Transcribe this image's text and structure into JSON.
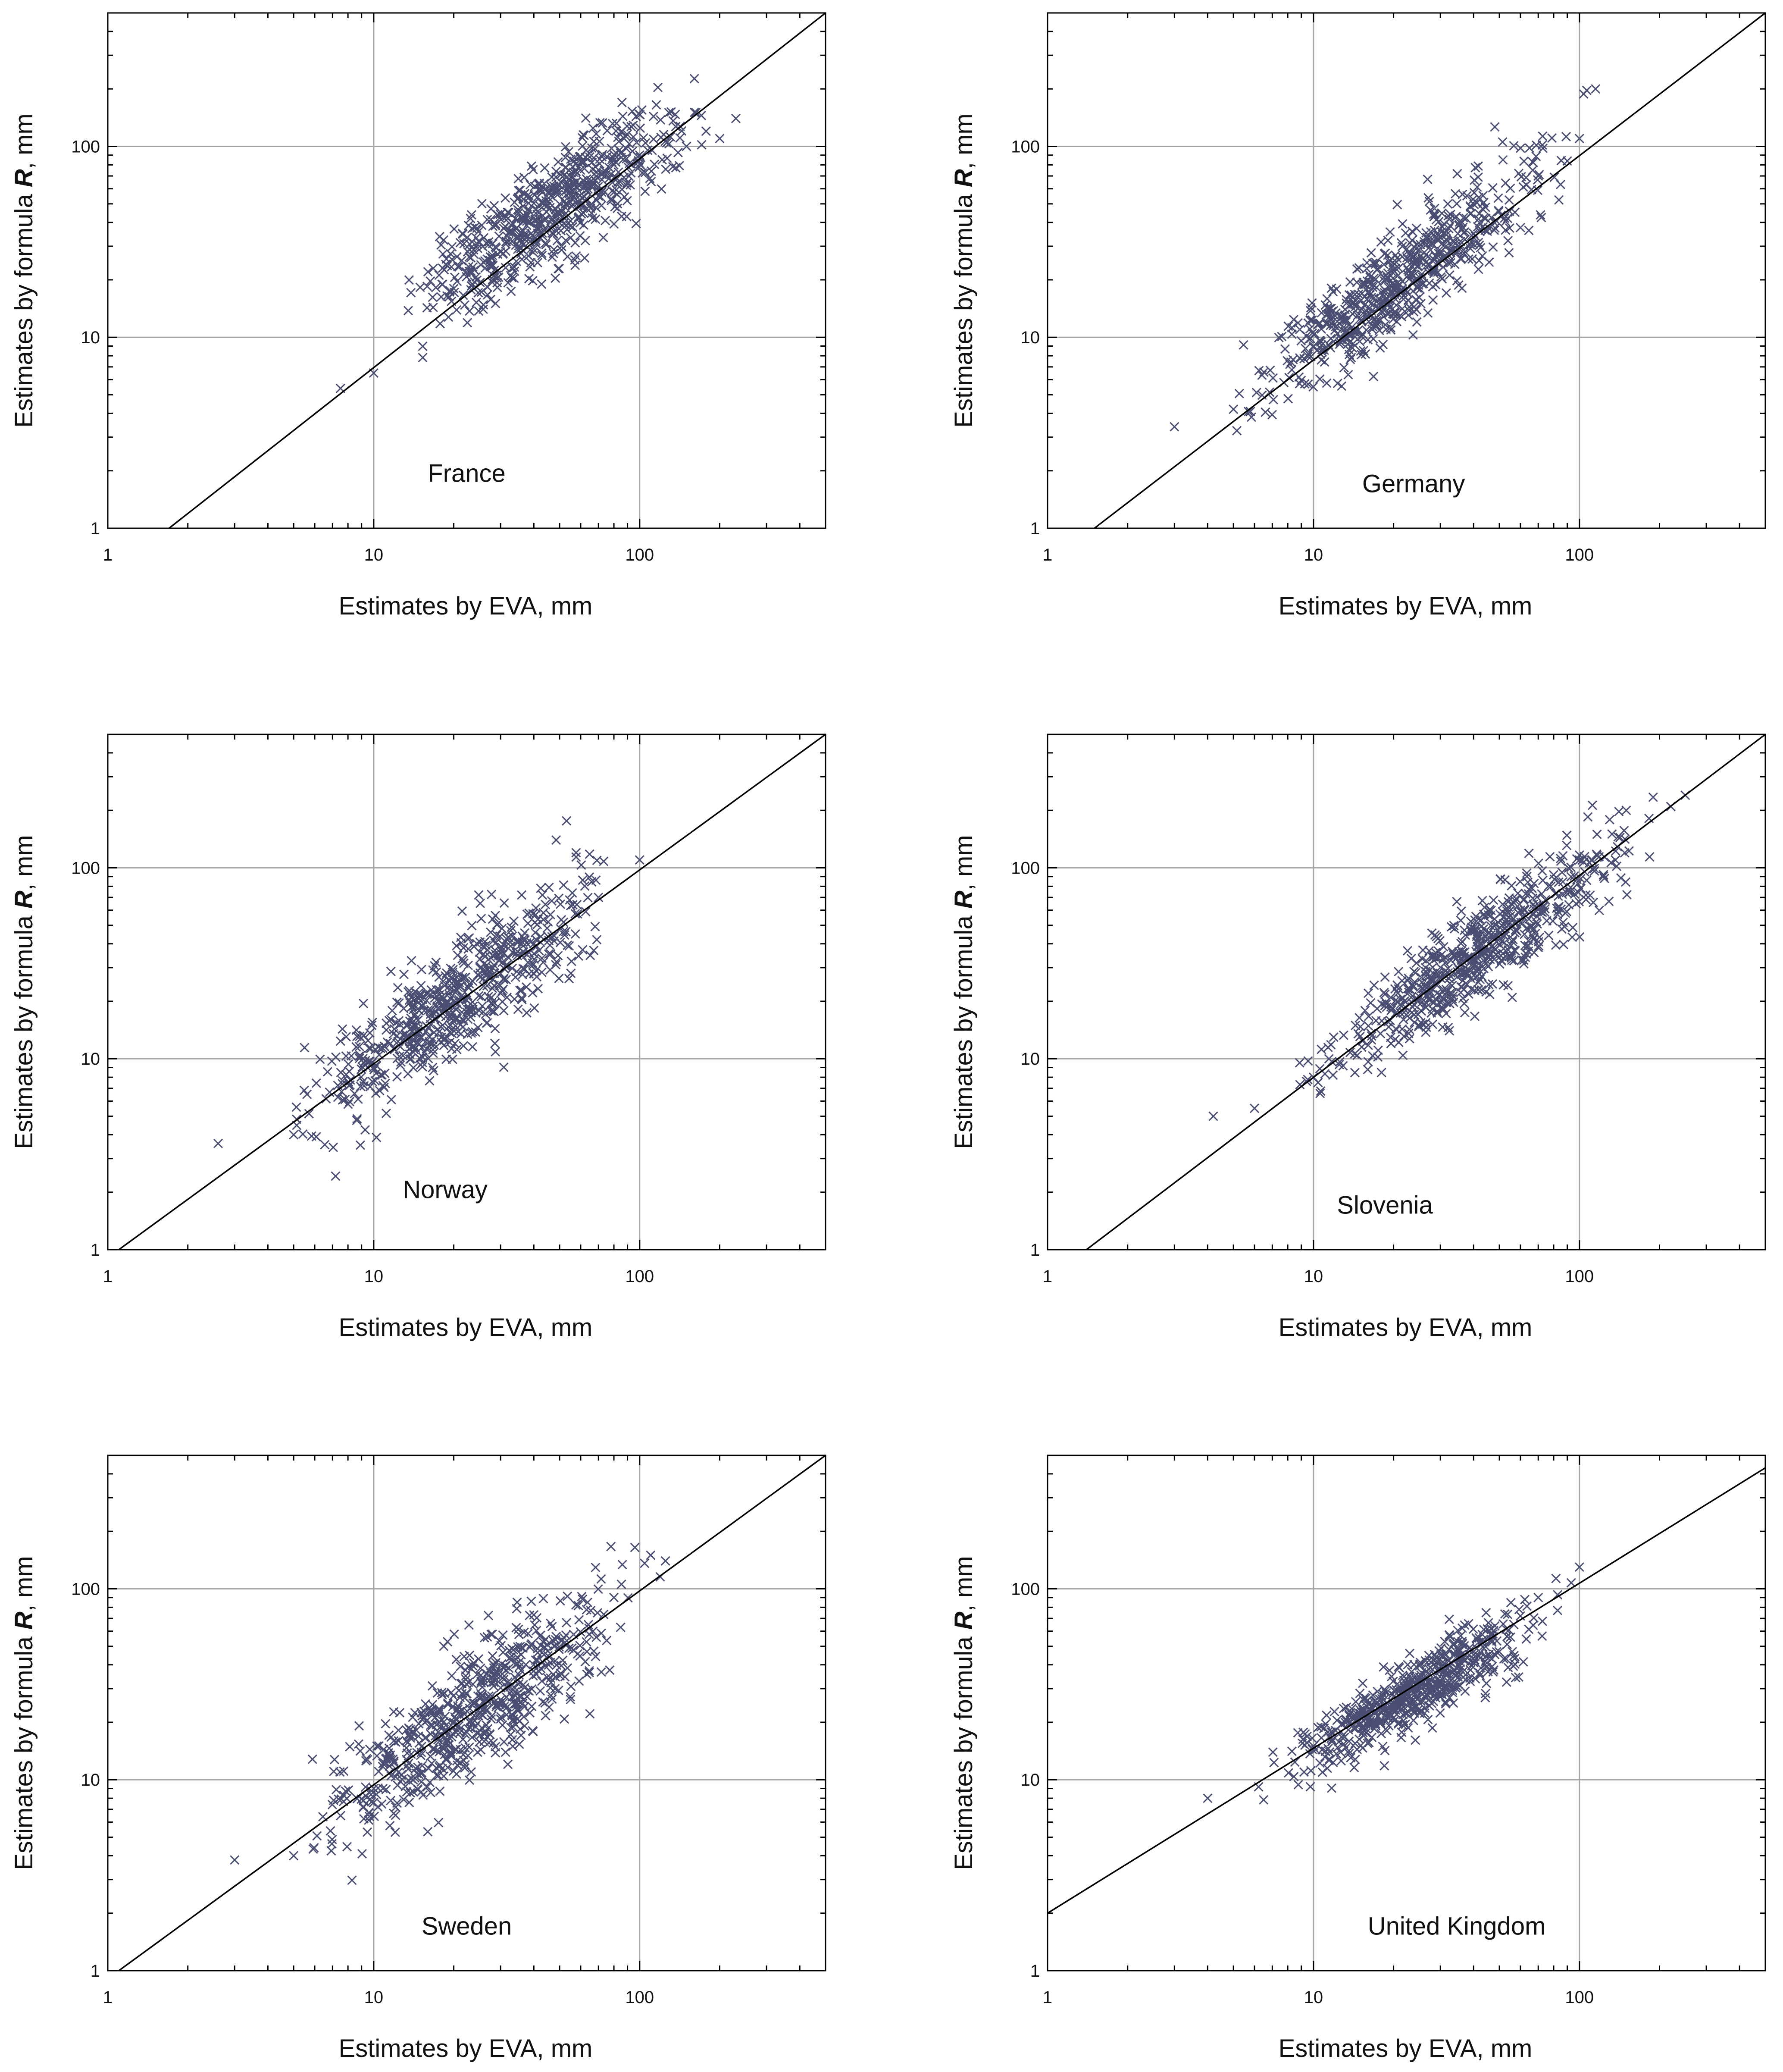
{
  "colors": {
    "marker": "#4a4e72",
    "grid": "#a8a8a8",
    "axis": "#000000",
    "line": "#000000",
    "text": "#111111"
  },
  "shared": {
    "xlabel": "Estimates by EVA, mm",
    "ylabel_prefix": "Estimates by formula ",
    "ylabel_var": "R",
    "ylabel_suffix": ", mm",
    "xlim": [
      1,
      500
    ],
    "ylim": [
      1,
      500
    ],
    "xticks": [
      1,
      10,
      100
    ],
    "yticks": [
      1,
      10,
      100
    ],
    "scale": "log"
  },
  "chart_data": [
    {
      "type": "scatter",
      "name": "France",
      "xlabel": "Estimates by EVA, mm",
      "ylabel": "Estimates by formula R, mm",
      "xlim": [
        1,
        500
      ],
      "ylim": [
        1,
        500
      ],
      "grid": true,
      "reference_line": {
        "x": [
          1.7,
          500
        ],
        "y": [
          1,
          500
        ]
      },
      "cloud": {
        "xmin": 7,
        "xmax": 230,
        "slope": 1.02,
        "intercept": 0.0,
        "spread": 0.14,
        "skew": -0.12,
        "count": 650
      },
      "points_sample": [
        [
          7.5,
          5.4
        ],
        [
          10,
          6.5
        ],
        [
          20,
          18
        ],
        [
          30,
          28
        ],
        [
          50,
          50
        ],
        [
          80,
          80
        ],
        [
          100,
          90
        ],
        [
          150,
          100
        ],
        [
          200,
          110
        ],
        [
          230,
          140
        ]
      ]
    },
    {
      "type": "scatter",
      "name": "Germany",
      "xlabel": "Estimates by EVA, mm",
      "ylabel": "Estimates by formula R, mm",
      "xlim": [
        1,
        500
      ],
      "ylim": [
        1,
        500
      ],
      "grid": true,
      "reference_line": {
        "x": [
          1.5,
          500
        ],
        "y": [
          1,
          500
        ]
      },
      "cloud": {
        "xmin": 2.8,
        "xmax": 115,
        "slope": 1.0,
        "intercept": -0.05,
        "spread": 0.13,
        "skew": 0.05,
        "count": 650
      },
      "points_sample": [
        [
          3,
          3.4
        ],
        [
          5,
          4.2
        ],
        [
          10,
          9
        ],
        [
          20,
          18
        ],
        [
          40,
          35
        ],
        [
          70,
          70
        ],
        [
          100,
          110
        ],
        [
          115,
          200
        ]
      ]
    },
    {
      "type": "scatter",
      "name": "Norway",
      "xlabel": "Estimates by EVA, mm",
      "ylabel": "Estimates by formula R, mm",
      "xlim": [
        1,
        500
      ],
      "ylim": [
        1,
        500
      ],
      "grid": true,
      "reference_line": {
        "x": [
          1.1,
          500
        ],
        "y": [
          1,
          500
        ]
      },
      "cloud": {
        "xmin": 2.6,
        "xmax": 105,
        "slope": 1.0,
        "intercept": 0.0,
        "spread": 0.15,
        "skew": 0.0,
        "count": 650
      },
      "points_sample": [
        [
          2.6,
          3.6
        ],
        [
          5,
          4
        ],
        [
          10,
          9
        ],
        [
          20,
          20
        ],
        [
          40,
          40
        ],
        [
          70,
          70
        ],
        [
          100,
          110
        ]
      ]
    },
    {
      "type": "scatter",
      "name": "Slovenia",
      "xlabel": "Estimates by EVA, mm",
      "ylabel": "Estimates by formula R, mm",
      "xlim": [
        1,
        500
      ],
      "ylim": [
        1,
        500
      ],
      "grid": true,
      "reference_line": {
        "x": [
          1.4,
          500
        ],
        "y": [
          1,
          500
        ]
      },
      "cloud": {
        "xmin": 4.2,
        "xmax": 260,
        "slope": 1.0,
        "intercept": -0.05,
        "spread": 0.12,
        "skew": -0.05,
        "count": 650
      },
      "points_sample": [
        [
          4.2,
          5
        ],
        [
          6,
          5.5
        ],
        [
          10,
          8
        ],
        [
          30,
          28
        ],
        [
          60,
          60
        ],
        [
          100,
          110
        ],
        [
          150,
          200
        ],
        [
          250,
          240
        ]
      ]
    },
    {
      "type": "scatter",
      "name": "Sweden",
      "xlabel": "Estimates by EVA, mm",
      "ylabel": "Estimates by formula R, mm",
      "xlim": [
        1,
        500
      ],
      "ylim": [
        1,
        500
      ],
      "grid": true,
      "reference_line": {
        "x": [
          1.1,
          500
        ],
        "y": [
          1,
          500
        ]
      },
      "cloud": {
        "xmin": 3,
        "xmax": 125,
        "slope": 1.0,
        "intercept": 0.0,
        "spread": 0.16,
        "skew": -0.05,
        "count": 650
      },
      "points_sample": [
        [
          3,
          3.8
        ],
        [
          5,
          4
        ],
        [
          10,
          9
        ],
        [
          20,
          20
        ],
        [
          40,
          40
        ],
        [
          80,
          90
        ],
        [
          110,
          150
        ],
        [
          125,
          140
        ]
      ]
    },
    {
      "type": "scatter",
      "name": "United Kingdom",
      "xlabel": "Estimates by EVA, mm",
      "ylabel": "Estimates by formula R, mm",
      "xlim": [
        1,
        500
      ],
      "ylim": [
        1,
        500
      ],
      "grid": true,
      "reference_line": {
        "x": [
          1,
          500
        ],
        "y": [
          2,
          430
        ]
      },
      "cloud": {
        "xmin": 4,
        "xmax": 105,
        "slope": 0.86,
        "intercept": 0.3,
        "spread": 0.09,
        "skew": -0.07,
        "count": 600
      },
      "points_sample": [
        [
          4,
          8
        ],
        [
          10,
          15
        ],
        [
          20,
          25
        ],
        [
          40,
          45
        ],
        [
          70,
          90
        ],
        [
          100,
          130
        ]
      ]
    }
  ]
}
